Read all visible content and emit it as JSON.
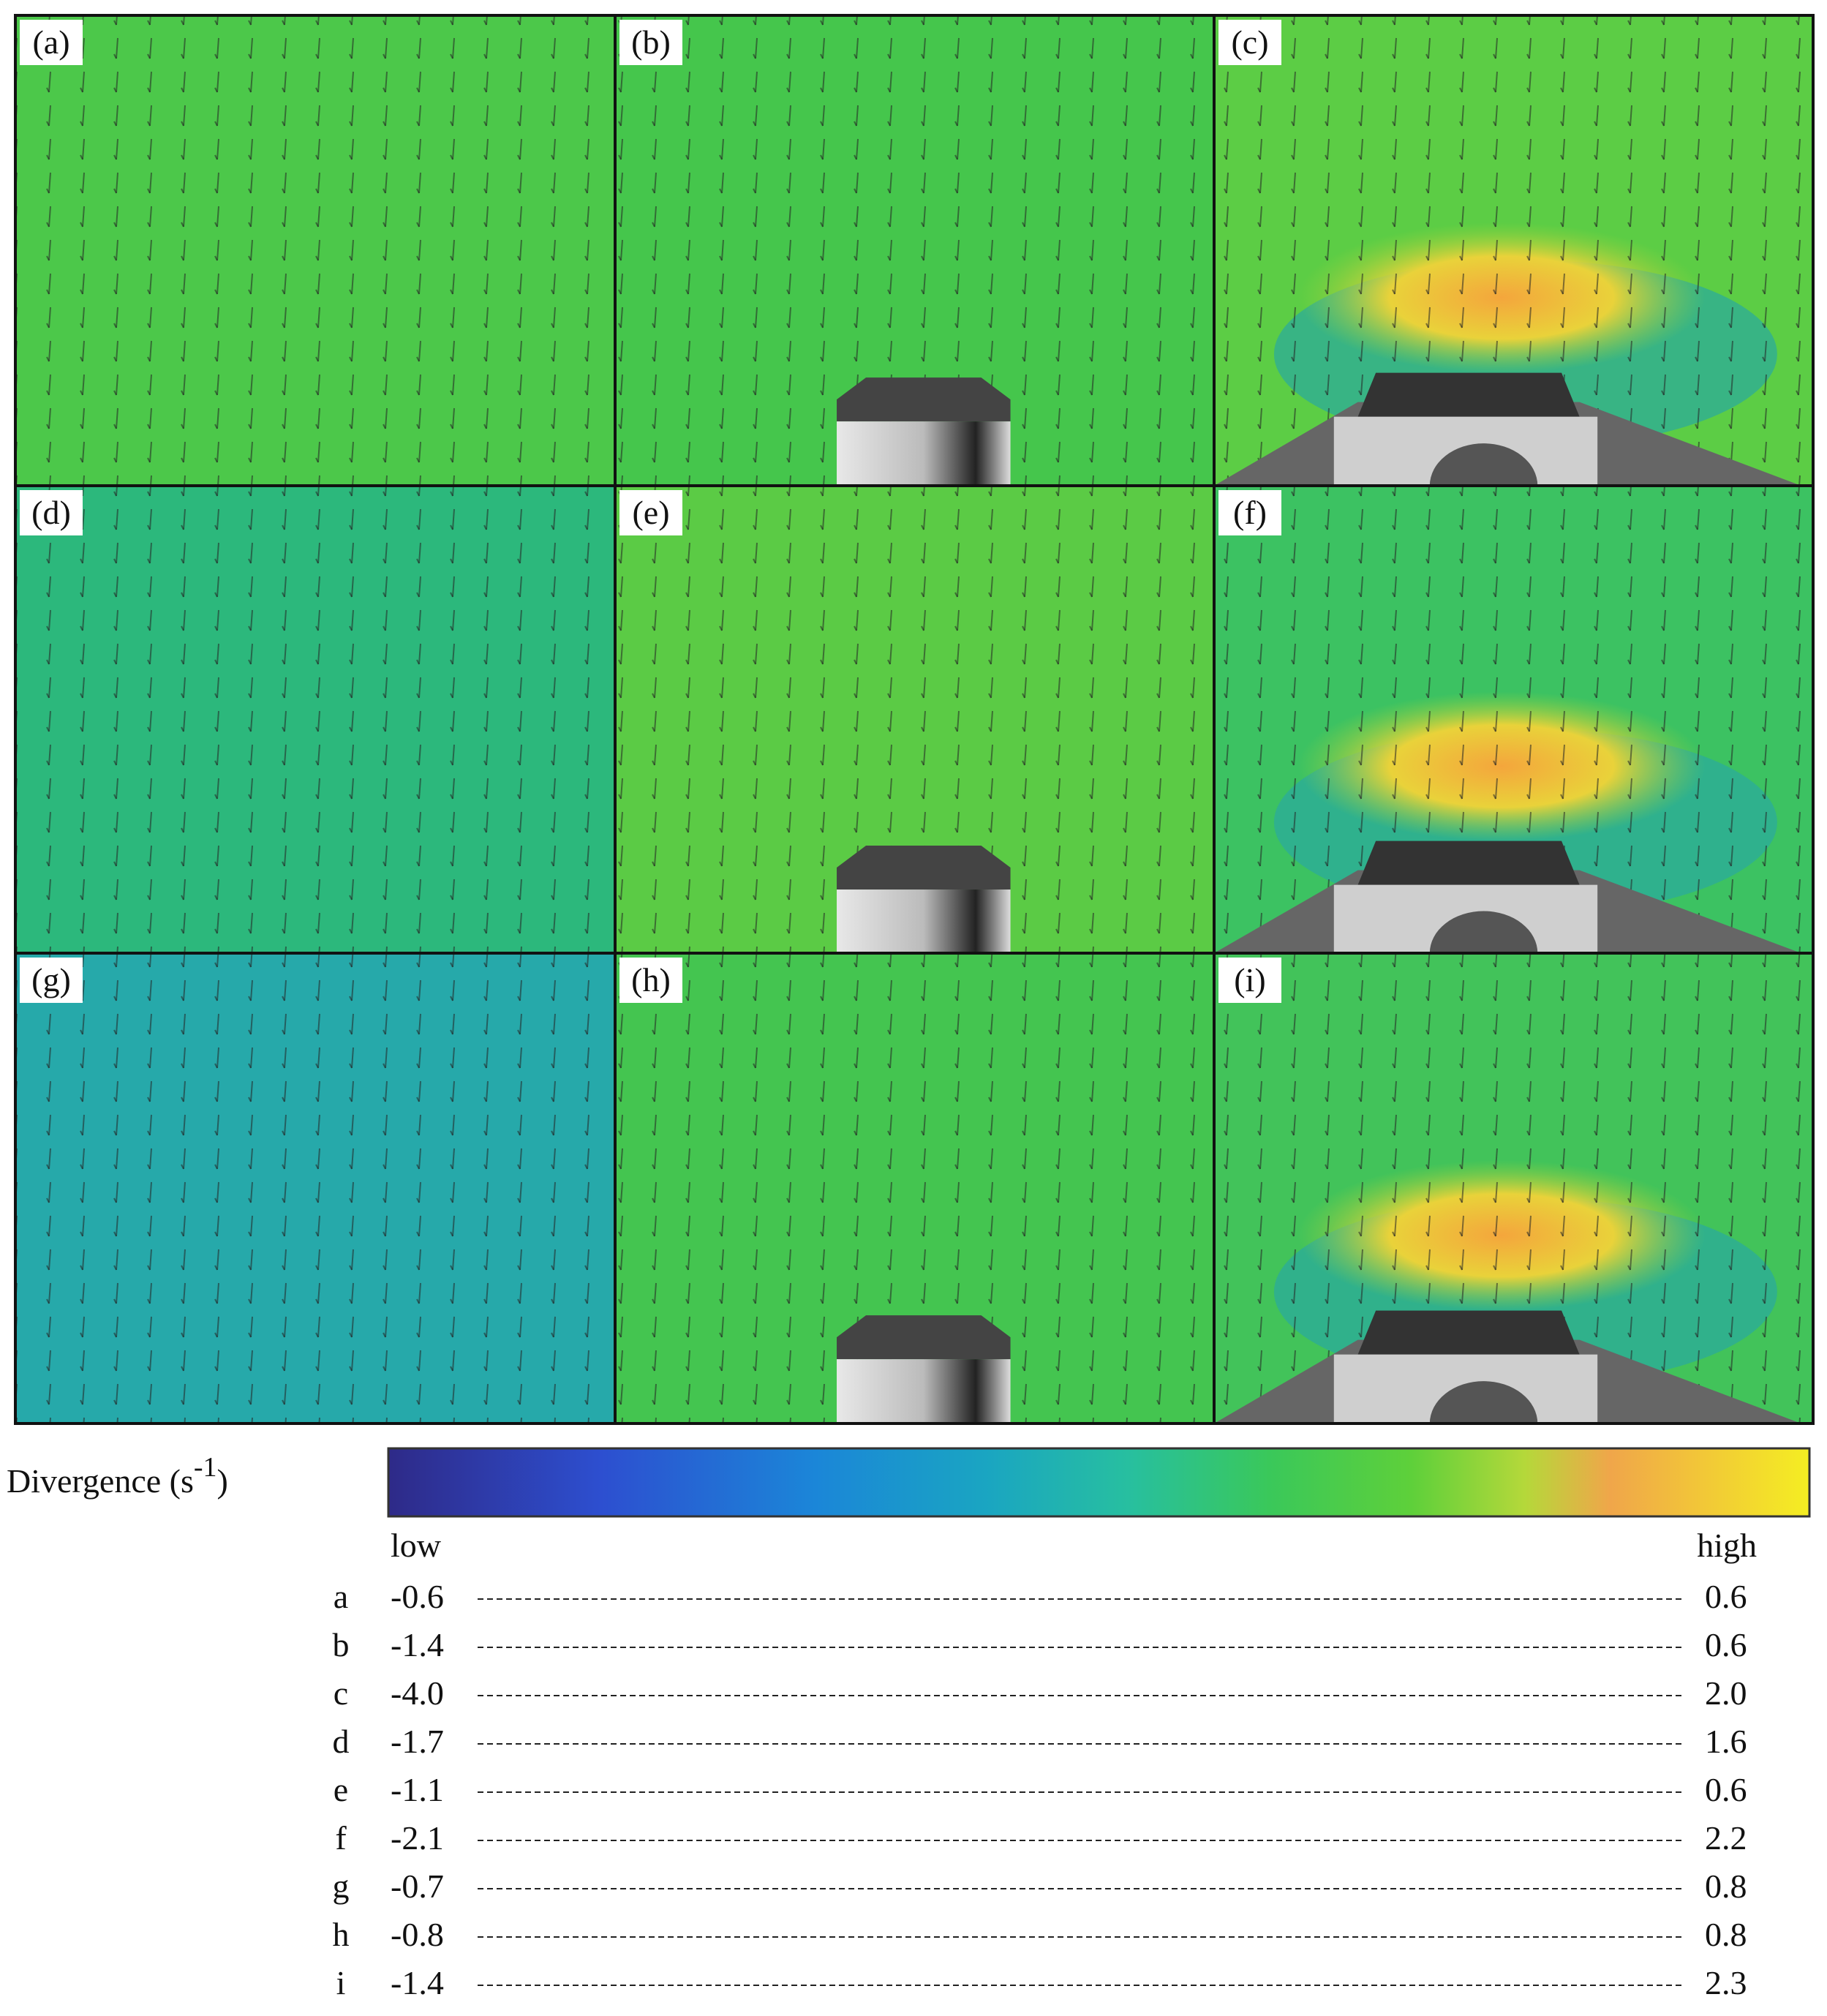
{
  "panels": [
    {
      "label": "(a)"
    },
    {
      "label": "(b)"
    },
    {
      "label": "(c)"
    },
    {
      "label": "(d)"
    },
    {
      "label": "(e)"
    },
    {
      "label": "(f)"
    },
    {
      "label": "(g)"
    },
    {
      "label": "(h)"
    },
    {
      "label": "(i)"
    }
  ],
  "colorbar": {
    "title": "Divergence (s",
    "title_sup": "-1",
    "title_end": ")",
    "low": "low",
    "high": "high"
  },
  "table": {
    "rows": [
      {
        "panel": "a",
        "low": "-0.6",
        "high": "0.6"
      },
      {
        "panel": "b",
        "low": "-1.4",
        "high": "0.6"
      },
      {
        "panel": "c",
        "low": "-4.0",
        "high": "2.0"
      },
      {
        "panel": "d",
        "low": "-1.7",
        "high": "1.6"
      },
      {
        "panel": "e",
        "low": "-1.1",
        "high": "0.6"
      },
      {
        "panel": "f",
        "low": "-2.1",
        "high": "2.2"
      },
      {
        "panel": "g",
        "low": "-0.7",
        "high": "0.8"
      },
      {
        "panel": "h",
        "low": "-0.8",
        "high": "0.8"
      },
      {
        "panel": "i",
        "low": "-1.4",
        "high": "2.3"
      }
    ]
  }
}
